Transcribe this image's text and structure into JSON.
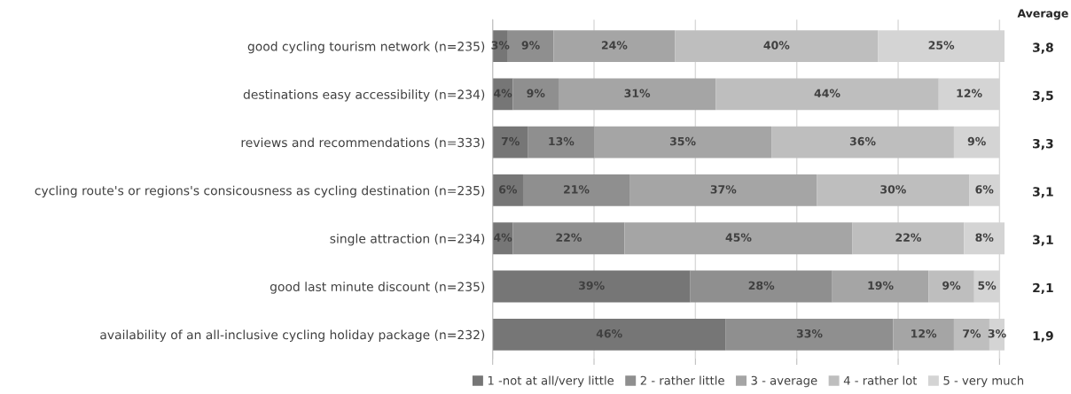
{
  "chart_data": {
    "type": "bar",
    "orientation": "horizontal",
    "stacked": true,
    "categories": [
      "good cycling tourism network (n=235)",
      "destinations easy accessibility (n=234)",
      "reviews and recommendations (n=333)",
      "cycling route's or regions's consicousness as cycling destination (n=235)",
      "single attraction (n=234)",
      "good last minute discount (n=235)",
      "availability of an all-inclusive cycling holiday package (n=232)"
    ],
    "series": [
      {
        "name": "1 -not at all/very little",
        "color": "#767676",
        "values": [
          3,
          4,
          7,
          6,
          4,
          39,
          46
        ],
        "value_labels": [
          "3%",
          "4%",
          "7%",
          "6%",
          "4%",
          "39%",
          "46%"
        ]
      },
      {
        "name": "2 - rather little",
        "color": "#8f8f8f",
        "values": [
          9,
          9,
          13,
          21,
          22,
          28,
          33
        ],
        "value_labels": [
          "9%",
          "9%",
          "13%",
          "21%",
          "22%",
          "28%",
          "33%"
        ]
      },
      {
        "name": "3 - average",
        "color": "#a5a5a5",
        "values": [
          24,
          31,
          35,
          37,
          45,
          19,
          12
        ],
        "value_labels": [
          "24%",
          "31%",
          "35%",
          "37%",
          "45%",
          "19%",
          "12%"
        ]
      },
      {
        "name": "4 - rather lot",
        "color": "#bebebe",
        "values": [
          40,
          44,
          36,
          30,
          22,
          9,
          7
        ],
        "value_labels": [
          "40%",
          "44%",
          "36%",
          "30%",
          "22%",
          "9%",
          "7%"
        ]
      },
      {
        "name": "5 - very much",
        "color": "#d4d4d4",
        "values": [
          25,
          12,
          9,
          6,
          8,
          5,
          3
        ],
        "value_labels": [
          "25%",
          "12%",
          "9%",
          "6%",
          "8%",
          "5%",
          "3%"
        ]
      }
    ],
    "grid": "x",
    "legend": "bottom",
    "annotations": [
      "Average",
      "3,8",
      "3,5",
      "3,3",
      "3,1",
      "3,1",
      "2,1",
      "1,9"
    ]
  }
}
